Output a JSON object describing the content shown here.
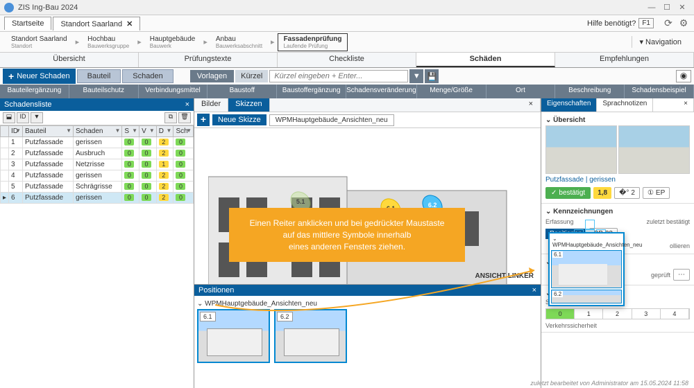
{
  "app": {
    "title": "ZIS Ing-Bau 2024"
  },
  "topbar": {
    "tabs": [
      {
        "label": "Startseite"
      },
      {
        "label": "Standort Saarland",
        "closable": true
      }
    ],
    "help": "Hilfe benötigt?",
    "f1": "F1"
  },
  "breadcrumb": {
    "items": [
      {
        "main": "Standort Saarland",
        "sub": "Standort"
      },
      {
        "main": "Hochbau",
        "sub": "Bauwerksgruppe"
      },
      {
        "main": "Hauptgebäude",
        "sub": "Bauwerk"
      },
      {
        "main": "Anbau",
        "sub": "Bauwerksabschnitt"
      },
      {
        "main": "Fassadenprüfung",
        "sub": "Laufende Prüfung",
        "active": true
      }
    ],
    "nav": "Navigation"
  },
  "maintabs": [
    "Übersicht",
    "Prüfungstexte",
    "Checkliste",
    "Schäden",
    "Empfehlungen"
  ],
  "maintab_active": 3,
  "toolbar1": {
    "new": "Neuer Schaden",
    "bauteil": "Bauteil",
    "schaden": "Schaden",
    "vorlagen": "Vorlagen",
    "kurzel": "Kürzel",
    "kurzel_placeholder": "Kürzel eingeben + Enter..."
  },
  "categories": [
    "Bauteilergänzung",
    "Bauteilschutz",
    "Verbindungsmittel",
    "Baustoff",
    "Baustoffergänzung",
    "Schadensveränderung",
    "Menge/Größe",
    "Ort",
    "Beschreibung",
    "Schadensbeispiel"
  ],
  "schadensliste": {
    "title": "Schadensliste",
    "columns": [
      "",
      "ID",
      "Bauteil",
      "Schaden",
      "S",
      "V",
      "D",
      "Sch"
    ],
    "rows": [
      {
        "id": "1",
        "bauteil": "Putzfassade",
        "schaden": "gerissen",
        "s": {
          "v": "0",
          "c": "g"
        },
        "v": {
          "v": "0",
          "c": "g"
        },
        "d": {
          "v": "2",
          "c": "y"
        },
        "sch": {
          "v": "0",
          "c": "g"
        }
      },
      {
        "id": "2",
        "bauteil": "Putzfassade",
        "schaden": "Ausbruch",
        "s": {
          "v": "0",
          "c": "g"
        },
        "v": {
          "v": "0",
          "c": "g"
        },
        "d": {
          "v": "2",
          "c": "y"
        },
        "sch": {
          "v": "0",
          "c": "g"
        }
      },
      {
        "id": "3",
        "bauteil": "Putzfassade",
        "schaden": "Netzrisse",
        "s": {
          "v": "0",
          "c": "g"
        },
        "v": {
          "v": "0",
          "c": "g"
        },
        "d": {
          "v": "1",
          "c": "y"
        },
        "sch": {
          "v": "0",
          "c": "g"
        }
      },
      {
        "id": "4",
        "bauteil": "Putzfassade",
        "schaden": "gerissen",
        "s": {
          "v": "0",
          "c": "g"
        },
        "v": {
          "v": "0",
          "c": "g"
        },
        "d": {
          "v": "2",
          "c": "y"
        },
        "sch": {
          "v": "0",
          "c": "g"
        }
      },
      {
        "id": "5",
        "bauteil": "Putzfassade",
        "schaden": "Schrägrisse",
        "s": {
          "v": "0",
          "c": "g"
        },
        "v": {
          "v": "0",
          "c": "g"
        },
        "d": {
          "v": "2",
          "c": "y"
        },
        "sch": {
          "v": "0",
          "c": "g"
        }
      },
      {
        "id": "6",
        "bauteil": "Putzfassade",
        "schaden": "gerissen",
        "s": {
          "v": "0",
          "c": "g"
        },
        "v": {
          "v": "0",
          "c": "g"
        },
        "d": {
          "v": "2",
          "c": "y"
        },
        "sch": {
          "v": "0",
          "c": "g"
        },
        "selected": true
      }
    ]
  },
  "mid": {
    "tabs": [
      "Bilder",
      "Skizzen"
    ],
    "active": 1,
    "neue_skizze": "Neue Skizze",
    "file": "WPMHauptgebäude_Ansichten_neu",
    "markers": {
      "m1": "5.1",
      "m2": "6.1",
      "m3": "6.2"
    },
    "ansicht": "ANSICHT LINKER"
  },
  "positionen": {
    "title": "Positionen",
    "group": "WPMHauptgebäude_Ansichten_neu",
    "thumbs": [
      {
        "label": "6.1"
      },
      {
        "label": "6.2"
      }
    ]
  },
  "right": {
    "tabs": [
      "Eigenschaften",
      "Sprachnotizen"
    ],
    "active": 0,
    "uebersicht": "Übersicht",
    "subject": "Putzfassade | gerissen",
    "bestaetigt": "bestätigt",
    "score": "1,8",
    "count": "2",
    "ep": "EP",
    "kennz": "Kennzeichnungen",
    "erfassung": "Erfassung",
    "zuletzt": "zuletzt bestätigt",
    "positionen": "Positionen",
    "bb": "BB 23",
    "kollieren": "ollieren",
    "geprueft": "geprüft",
    "standsi": "Standsi",
    "slider": [
      "0",
      "1",
      "2",
      "3",
      "4"
    ],
    "verkehr": "Verkehrssicherheit"
  },
  "callout": {
    "l1": "Einen Reiter anklicken und bei gedrückter Maustaste",
    "l2": "auf das mittlere Symbole innerhalb",
    "l3": "eines anderen Fensters ziehen."
  },
  "ghost": {
    "title": "WPMHauptgebäude_Ansichten_neu",
    "t1": "6.1",
    "t2": "6.2"
  },
  "status": "zuletzt bearbeitet von Administrator am 15.05.2024 11:58",
  "colors": {
    "primary": "#0a5e9c",
    "accent": "#f5a623",
    "green": "#4caf50",
    "yellow": "#ffd93d",
    "blue_marker": "#4fc3f7"
  }
}
